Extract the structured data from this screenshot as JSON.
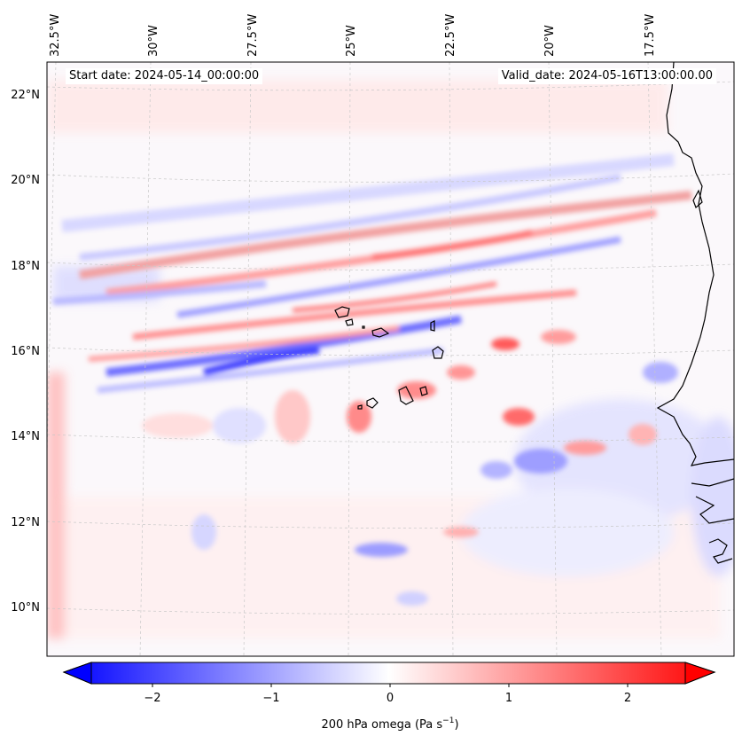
{
  "map": {
    "top_lon_labels": [
      "32.5°W",
      "30°W",
      "27.5°W",
      "25°W",
      "22.5°W",
      "20°W",
      "17.5°W"
    ],
    "left_lat_labels": [
      "22°N",
      "20°N",
      "18°N",
      "16°N",
      "14°N",
      "12°N",
      "10°N"
    ],
    "start_date_text": "Start date: 2024-05-14_00:00:00",
    "valid_date_text": "Valid_date: 2024-05-16T13:00:00.00",
    "extent": {
      "lon_min": -33.0,
      "lon_max": -15.3,
      "lat_min": 8.8,
      "lat_max": 22.8
    },
    "field": "200 hPa omega",
    "projection": "lambert-conformal",
    "gridlines": true
  },
  "colorbar": {
    "ticks": [
      "−2",
      "−1",
      "0",
      "1",
      "2"
    ],
    "label_main": "200 hPa omega (Pa s",
    "label_exp": "−1",
    "label_close": ")",
    "vmin": -2.7,
    "vmax": 2.7,
    "colormap": "bwr",
    "extend": "both"
  },
  "colors": {
    "negative": "#0000ff",
    "zero": "#ffffff",
    "positive": "#ff0000",
    "coastline": "#000000",
    "grid": "#c8c8c8"
  }
}
